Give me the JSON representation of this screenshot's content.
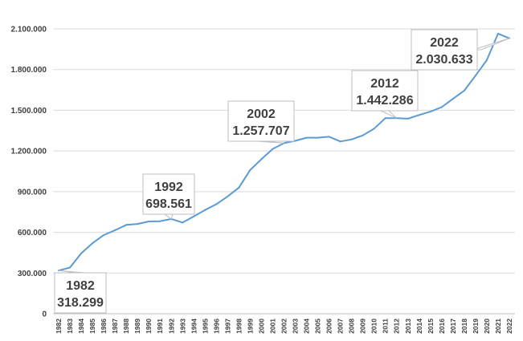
{
  "chart_data": {
    "type": "line",
    "title": "",
    "xlabel": "",
    "ylabel": "",
    "ylim": [
      0,
      2100000
    ],
    "yticks": [
      0,
      300000,
      600000,
      900000,
      1200000,
      1500000,
      1800000,
      2100000
    ],
    "ytick_labels": [
      "0",
      "300.000",
      "600.000",
      "900.000",
      "1.200.000",
      "1.500.000",
      "1.800.000",
      "2.100.000"
    ],
    "grid": true,
    "legend": "none",
    "line_color": "#5b9bd5",
    "categories": [
      "1982",
      "1983",
      "1984",
      "1985",
      "1986",
      "1987",
      "1988",
      "1989",
      "1990",
      "1991",
      "1992",
      "1993",
      "1994",
      "1995",
      "1996",
      "1997",
      "1998",
      "1999",
      "2000",
      "2001",
      "2002",
      "2003",
      "2004",
      "2005",
      "2006",
      "2007",
      "2008",
      "2009",
      "2010",
      "2011",
      "2012",
      "2013",
      "2014",
      "2015",
      "2016",
      "2017",
      "2018",
      "2019",
      "2020",
      "2021",
      "2022"
    ],
    "values": [
      318299,
      340000,
      445000,
      520000,
      580000,
      615000,
      655000,
      662000,
      680000,
      682000,
      698561,
      672000,
      718000,
      765000,
      808000,
      865000,
      930000,
      1060000,
      1140000,
      1215000,
      1257707,
      1275000,
      1298000,
      1298000,
      1305000,
      1270000,
      1285000,
      1315000,
      1365000,
      1442000,
      1442286,
      1438000,
      1465000,
      1490000,
      1523000,
      1585000,
      1645000,
      1755000,
      1870000,
      2065000,
      2030633
    ],
    "annotations": [
      {
        "year": "1982",
        "value_label": "318.299"
      },
      {
        "year": "1992",
        "value_label": "698.561"
      },
      {
        "year": "2002",
        "value_label": "1.257.707"
      },
      {
        "year": "2012",
        "value_label": "1.442.286"
      },
      {
        "year": "2022",
        "value_label": "2.030.633"
      }
    ]
  }
}
